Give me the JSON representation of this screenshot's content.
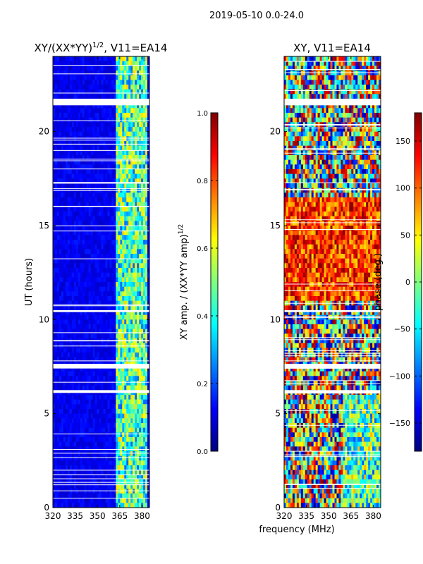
{
  "figure": {
    "suptitle": "2019-05-10 0.0-24.0",
    "shared_xlabel": "frequency (MHz)"
  },
  "chart_data": [
    {
      "type": "heatmap",
      "title_main": "XY/(XX*YY)",
      "title_exp": "1/2",
      "title_tail": ", V11=EA14",
      "ylabel": "UT (hours)",
      "xlabel": "frequency (MHz)",
      "xlim": [
        320,
        385
      ],
      "xticks": [
        320,
        335,
        350,
        365,
        380
      ],
      "ylim": [
        0,
        24
      ],
      "yticks": [
        0,
        5,
        10,
        15,
        20
      ],
      "colormap": "jet",
      "colorbar": {
        "label_main": "XY amp. / (XX*YY amp)",
        "label_exp": "1/2",
        "range": [
          0.0,
          1.0
        ],
        "ticks": [
          "0.0",
          "0.2",
          "0.4",
          "0.6",
          "0.8",
          "1.0"
        ],
        "tick_values": [
          0.0,
          0.2,
          0.4,
          0.6,
          0.8,
          1.0
        ]
      },
      "flagged_ut_bands": [
        [
          7.4,
          7.65
        ],
        [
          21.4,
          21.75
        ],
        [
          10.4,
          10.5
        ],
        [
          6.1,
          6.25
        ]
      ],
      "notes": "Low amplitude (~0.05-0.15) below ~362 MHz; elevated 0.3-0.7 at 362-382 MHz"
    },
    {
      "type": "heatmap",
      "title": "XY, V11=EA14",
      "xlabel": "frequency (MHz)",
      "xlim": [
        320,
        385
      ],
      "xticks": [
        320,
        335,
        350,
        365,
        380
      ],
      "ylim": [
        0,
        24
      ],
      "yticks": [
        0,
        5,
        10,
        15,
        20
      ],
      "colormap": "jet",
      "colorbar": {
        "label": "phase (deg.)",
        "range": [
          -180,
          180
        ],
        "ticks": [
          "150",
          "100",
          "50",
          "0",
          "−50",
          "−100",
          "−150"
        ],
        "tick_values": [
          150,
          100,
          50,
          0,
          -50,
          -100,
          -150
        ]
      },
      "flagged_ut_bands": [
        [
          7.4,
          7.65
        ],
        [
          21.4,
          21.75
        ],
        [
          10.4,
          10.5
        ],
        [
          6.1,
          6.25
        ]
      ],
      "notes": "Phase wraps across full range; predominantly red/orange (~100-180 deg) between 11-16 UT"
    }
  ]
}
